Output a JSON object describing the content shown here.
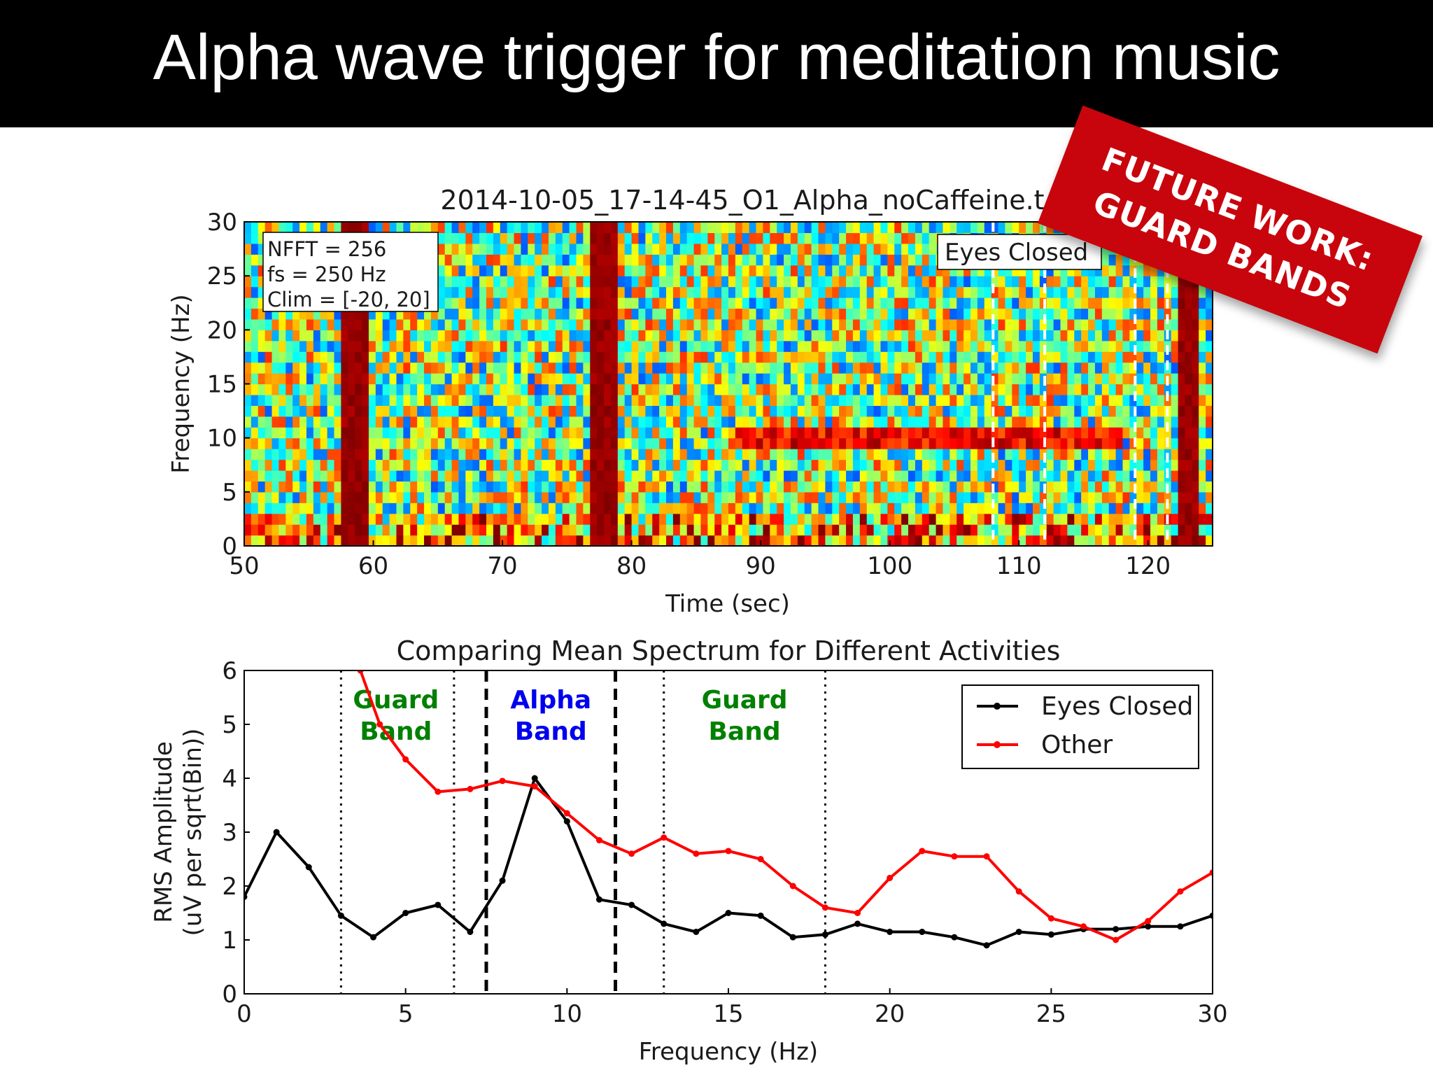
{
  "slide_title": "Alpha wave trigger for meditation music",
  "banner": {
    "line1": "FUTURE WORK:",
    "line2": "GUARD BANDS",
    "color": "#c8050c"
  },
  "chart_data": [
    {
      "type": "heatmap",
      "title": "2014-10-05_17-14-45_O1_Alpha_noCaffeine.t",
      "xlabel": "Time (sec)",
      "ylabel": "Frequency (Hz)",
      "xlim": [
        50,
        125
      ],
      "ylim": [
        0,
        30
      ],
      "xticks": [
        "50",
        "60",
        "70",
        "80",
        "90",
        "100",
        "110",
        "120"
      ],
      "yticks": [
        "0",
        "5",
        "10",
        "15",
        "20",
        "25",
        "30"
      ],
      "info_box": [
        "NFFT = 256",
        "fs = 250 Hz",
        "Clim = [-20, 20]"
      ],
      "annotation": "Eyes Closed",
      "colormap": "jet",
      "clim": [
        -20,
        20
      ],
      "broadband_artifacts_sec": [
        58.5,
        78
      ],
      "eyes_closed_alpha": {
        "start_sec": 88,
        "end_sec": 118,
        "freq_hz": 10
      },
      "marker_lines_sec": [
        108,
        112,
        119,
        121.5
      ],
      "grid": false
    },
    {
      "type": "line",
      "title": "Comparing Mean Spectrum for Different Activities",
      "xlabel": "Frequency (Hz)",
      "ylabel": "RMS Amplitude\n(uV per sqrt(Bin))",
      "xlim": [
        0,
        30
      ],
      "ylim": [
        0,
        6
      ],
      "xticks": [
        "0",
        "5",
        "10",
        "15",
        "20",
        "25",
        "30"
      ],
      "yticks": [
        "0",
        "1",
        "2",
        "3",
        "4",
        "5",
        "6"
      ],
      "legend_position": "top-right",
      "grid": false,
      "series": [
        {
          "name": "Eyes Closed",
          "color": "#000000",
          "x": [
            0,
            1,
            2,
            3,
            4,
            5,
            6,
            7,
            8,
            9,
            10,
            11,
            12,
            13,
            14,
            15,
            16,
            17,
            18,
            19,
            20,
            21,
            22,
            23,
            24,
            25,
            26,
            27,
            28,
            29,
            30
          ],
          "y": [
            1.8,
            3.0,
            2.35,
            1.45,
            1.05,
            1.5,
            1.65,
            1.15,
            2.1,
            4.0,
            3.2,
            1.75,
            1.65,
            1.3,
            1.15,
            1.5,
            1.45,
            1.05,
            1.1,
            1.3,
            1.15,
            1.15,
            1.05,
            0.9,
            1.15,
            1.1,
            1.2,
            1.2,
            1.25,
            1.25,
            1.45
          ]
        },
        {
          "name": "Other",
          "color": "#ff0000",
          "x": [
            3.6,
            4.2,
            5,
            6,
            7,
            8,
            9,
            10,
            11,
            12,
            13,
            14,
            15,
            16,
            17,
            18,
            19,
            20,
            21,
            22,
            23,
            24,
            25,
            26,
            27,
            28,
            29,
            30
          ],
          "y": [
            6.0,
            5.0,
            4.35,
            3.75,
            3.8,
            3.95,
            3.85,
            3.35,
            2.85,
            2.6,
            2.9,
            2.6,
            2.65,
            2.5,
            2.0,
            1.6,
            1.5,
            2.15,
            2.65,
            2.55,
            2.55,
            1.9,
            1.4,
            1.25,
            1.0,
            1.35,
            1.9,
            2.25
          ]
        }
      ],
      "vertical_lines": [
        {
          "x": 3.0,
          "style": "dotted"
        },
        {
          "x": 6.5,
          "style": "dotted"
        },
        {
          "x": 7.5,
          "style": "dashed"
        },
        {
          "x": 11.5,
          "style": "dashed"
        },
        {
          "x": 13.0,
          "style": "dotted"
        },
        {
          "x": 18.0,
          "style": "dotted"
        }
      ],
      "annotations": [
        {
          "line1": "Guard",
          "line2": "Band",
          "x": 4.7,
          "color": "#008000"
        },
        {
          "line1": "Alpha",
          "line2": "Band",
          "x": 9.5,
          "color": "#0000ee"
        },
        {
          "line1": "Guard",
          "line2": "Band",
          "x": 15.5,
          "color": "#008000"
        }
      ]
    }
  ]
}
